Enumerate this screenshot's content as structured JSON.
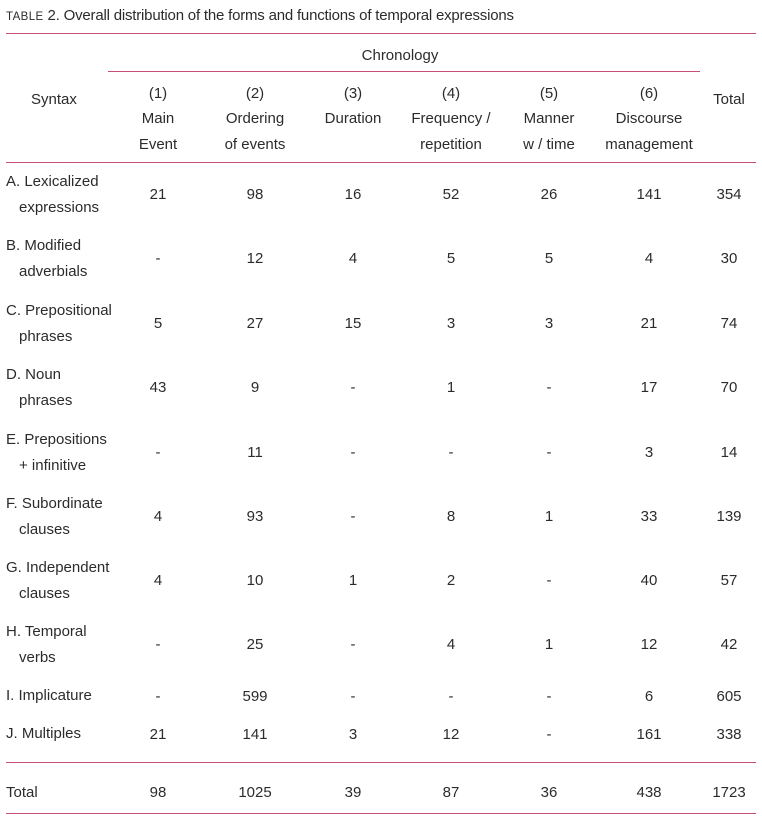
{
  "caption": {
    "table_word": "Table",
    "rest": " 2. Overall distribution of the forms and functions of temporal expressions"
  },
  "header": {
    "syntax": "Syntax",
    "group": "Chronology",
    "total": "Total",
    "columns": [
      {
        "num": "(1)",
        "line1": "Main",
        "line2": "Event"
      },
      {
        "num": "(2)",
        "line1": "Ordering",
        "line2": "of events"
      },
      {
        "num": "(3)",
        "line1": "Duration",
        "line2": ""
      },
      {
        "num": "(4)",
        "line1": "Frequency /",
        "line2": "repetition"
      },
      {
        "num": "(5)",
        "line1": "Manner",
        "line2": "w / time"
      },
      {
        "num": "(6)",
        "line1": "Discourse",
        "line2": "management"
      }
    ]
  },
  "rows": [
    {
      "label1": "A. Lexicalized",
      "label2": "expressions",
      "values": [
        "21",
        "98",
        "16",
        "52",
        "26",
        "141"
      ],
      "total": "354"
    },
    {
      "label1": "B. Modified",
      "label2": "adverbials",
      "values": [
        "-",
        "12",
        "4",
        "5",
        "5",
        "4"
      ],
      "total": "30"
    },
    {
      "label1": "C. Prepositional",
      "label2": "phrases",
      "values": [
        "5",
        "27",
        "15",
        "3",
        "3",
        "21"
      ],
      "total": "74"
    },
    {
      "label1": "D. Noun",
      "label2": "phrases",
      "values": [
        "43",
        "9",
        "-",
        "1",
        "-",
        "17"
      ],
      "total": "70"
    },
    {
      "label1": "E. Prepositions",
      "label2": "+ infinitive",
      "values": [
        "-",
        "11",
        "-",
        "-",
        "-",
        "3"
      ],
      "total": "14"
    },
    {
      "label1": "F.  Subordinate",
      "label2": "clauses",
      "values": [
        "4",
        "93",
        "-",
        "8",
        "1",
        "33"
      ],
      "total": "139"
    },
    {
      "label1": "G. Independent",
      "label2": "clauses",
      "values": [
        "4",
        "10",
        "1",
        "2",
        "-",
        "40"
      ],
      "total": "57"
    },
    {
      "label1": "H. Temporal",
      "label2": "verbs",
      "values": [
        "-",
        "25",
        "-",
        "4",
        "1",
        "12"
      ],
      "total": "42"
    },
    {
      "label1": "I. Implicature",
      "label2": "",
      "values": [
        "-",
        "599",
        "-",
        "-",
        "-",
        "6"
      ],
      "total": "605"
    },
    {
      "label1": "J. Multiples",
      "label2": "",
      "values": [
        "21",
        "141",
        "3",
        "12",
        "-",
        "161"
      ],
      "total": "338"
    }
  ],
  "totals": {
    "label": "Total",
    "values": [
      "98",
      "1025",
      "39",
      "87",
      "36",
      "438"
    ],
    "grand": "1723"
  },
  "colors": {
    "rule": "#c45078",
    "text": "#2b2b2b"
  }
}
